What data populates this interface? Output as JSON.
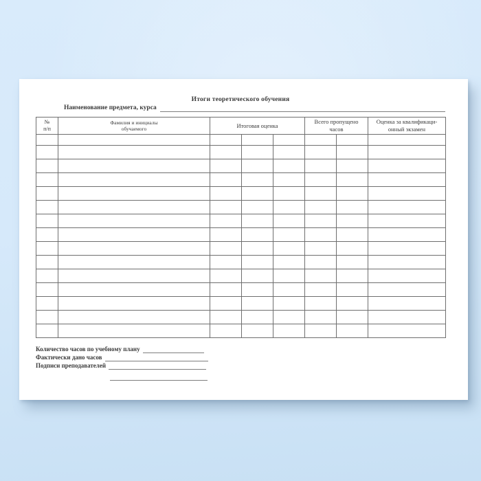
{
  "document": {
    "title": "Итоги теоретического обучения",
    "subject_line_label": "Наименование предмета, курса",
    "table": {
      "headers": {
        "number": "№\nп/п",
        "name": "Фамилия и инициалы\nобучаемого",
        "final_grade": "Итоговая оценка",
        "missed_hours": "Всего пропущено\nчасов",
        "qual_exam": "Оценка за квалификаци-\nонный экзамен"
      },
      "final_grade_subcolumns": 3,
      "missed_hours_subcolumns": 2,
      "body_row_count": 15
    },
    "footer": {
      "hours_plan_label": "Количество часов по учебному плану",
      "hours_actual_label": "Фактически дано часов",
      "signatures_label": "Подписи преподавателей"
    }
  }
}
